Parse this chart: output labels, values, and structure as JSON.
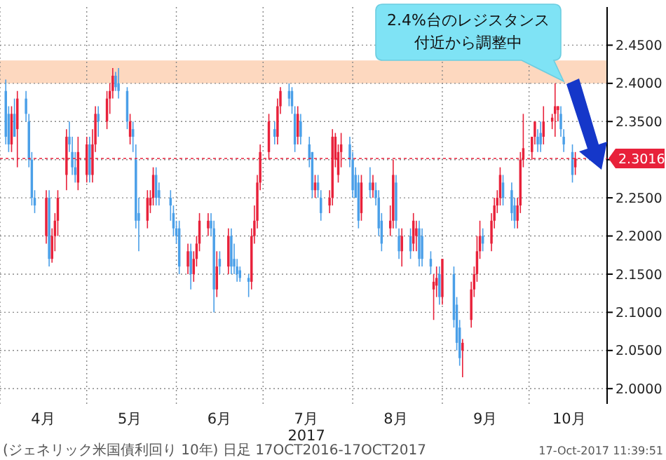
{
  "chart_data": {
    "type": "candlestick",
    "xlabel": "2017",
    "annotations": [
      "2.4%台のレジスタンス付近から調整中",
      "(ジェネリック米国債利回り 10年) 日足 17OCT2016-17OCT2017",
      "17-Oct-2017 11:39:51"
    ],
    "colors": [
      "#4a9fe8",
      "#4a9fe8",
      "#e8213a",
      "#4a9fe8",
      "#e8213a",
      "#4a9fe8",
      "#4a9fe8",
      "#4a9fe8",
      "#4a9fe8",
      "#e8213a",
      "#4a9fe8",
      "#e8213a",
      "#e8213a",
      "#e8213a",
      "#e8213a",
      "#4a9fe8",
      "#4a9fe8",
      "#4a9fe8",
      "#e8213a",
      "#e8213a",
      "#4a9fe8",
      "#e8213a",
      "#e8213a",
      "#4a9fe8",
      "#e8213a",
      "#e8213a",
      "#e8213a",
      "#4a9fe8",
      "#4a9fe8",
      "#4a9fe8",
      "#e8213a",
      "#4a9fe8",
      "#4a9fe8",
      "#4a9fe8",
      "#e8213a",
      "#e8213a",
      "#e8213a",
      "#4a9fe8",
      "#4a9fe8",
      "#4a9fe8",
      "#4a9fe8",
      "#4a9fe8",
      "#4a9fe8",
      "#e8213a",
      "#4a9fe8",
      "#e8213a",
      "#e8213a",
      "#e8213a",
      "#e8213a",
      "#4a9fe8",
      "#4a9fe8",
      "#e8213a",
      "#4a9fe8",
      "#e8213a",
      "#4a9fe8",
      "#4a9fe8",
      "#4a9fe8",
      "#4a9fe8",
      "#4a9fe8",
      "#e8213a",
      "#e8213a",
      "#e8213a",
      "#e8213a",
      "#e8213a",
      "#4a9fe8",
      "#e8213a",
      "#e8213a",
      "#4a9fe8",
      "#4a9fe8",
      "#4a9fe8",
      "#e8213a",
      "#4a9fe8",
      "#4a9fe8",
      "#4a9fe8",
      "#e8213a",
      "#4a9fe8",
      "#4a9fe8",
      "#e8213a",
      "#e8213a",
      "#e8213a",
      "#e8213a",
      "#e8213a",
      "#4a9fe8",
      "#4a9fe8",
      "#4a9fe8",
      "#4a9fe8",
      "#e8213a",
      "#4a9fe8",
      "#e8213a",
      "#4a9fe8",
      "#4a9fe8",
      "#4a9fe8",
      "#e8213a",
      "#e8213a",
      "#4a9fe8",
      "#4a9fe8",
      "#e8213a",
      "#4a9fe8",
      "#e8213a",
      "#e8213a",
      "#4a9fe8",
      "#4a9fe8",
      "#4a9fe8",
      "#e8213a",
      "#e8213a",
      "#4a9fe8",
      "#e8213a",
      "#4a9fe8",
      "#4a9fe8",
      "#4a9fe8",
      "#e8213a",
      "#e8213a",
      "#e8213a",
      "#e8213a",
      "#e8213a",
      "#4a9fe8",
      "#e8213a",
      "#e8213a",
      "#e8213a",
      "#e8213a",
      "#4a9fe8",
      "#4a9fe8",
      "#4a9fe8",
      "#e8213a",
      "#e8213a",
      "#e8213a",
      "#e8213a",
      "#e8213a",
      "#4a9fe8",
      "#4a9fe8",
      "#e8213a",
      "#e8213a",
      "#e8213a",
      "#e8213a",
      "#4a9fe8",
      "#4a9fe8",
      "#4a9fe8",
      "#e8213a"
    ],
    "x": [
      "2017-04-03",
      "2017-04-04",
      "2017-04-05",
      "2017-04-06",
      "2017-04-07",
      "2017-04-10",
      "2017-04-11",
      "2017-04-12",
      "2017-04-13",
      "2017-04-17",
      "2017-04-18",
      "2017-04-19",
      "2017-04-20",
      "2017-04-21",
      "2017-04-24",
      "2017-04-25",
      "2017-04-26",
      "2017-04-27",
      "2017-04-28",
      "2017-05-01",
      "2017-05-02",
      "2017-05-03",
      "2017-05-04",
      "2017-05-05",
      "2017-05-08",
      "2017-05-09",
      "2017-05-10",
      "2017-05-11",
      "2017-05-12",
      "2017-05-15",
      "2017-05-16",
      "2017-05-17",
      "2017-05-18",
      "2017-05-19",
      "2017-05-22",
      "2017-05-23",
      "2017-05-24",
      "2017-05-25",
      "2017-05-26",
      "2017-05-30",
      "2017-05-31",
      "2017-06-01",
      "2017-06-02",
      "2017-06-05",
      "2017-06-06",
      "2017-06-07",
      "2017-06-08",
      "2017-06-09",
      "2017-06-12",
      "2017-06-13",
      "2017-06-14",
      "2017-06-15",
      "2017-06-16",
      "2017-06-19",
      "2017-06-20",
      "2017-06-21",
      "2017-06-22",
      "2017-06-23",
      "2017-06-26",
      "2017-06-27",
      "2017-06-28",
      "2017-06-29",
      "2017-06-30",
      "2017-07-03",
      "2017-07-05",
      "2017-07-06",
      "2017-07-07",
      "2017-07-10",
      "2017-07-11",
      "2017-07-12",
      "2017-07-13",
      "2017-07-14",
      "2017-07-17",
      "2017-07-18",
      "2017-07-19",
      "2017-07-20",
      "2017-07-21",
      "2017-07-24",
      "2017-07-25",
      "2017-07-26",
      "2017-07-27",
      "2017-07-28",
      "2017-07-31",
      "2017-08-01",
      "2017-08-02",
      "2017-08-03",
      "2017-08-04",
      "2017-08-07",
      "2017-08-08",
      "2017-08-09",
      "2017-08-10",
      "2017-08-11",
      "2017-08-14",
      "2017-08-15",
      "2017-08-16",
      "2017-08-17",
      "2017-08-18",
      "2017-08-21",
      "2017-08-22",
      "2017-08-23",
      "2017-08-24",
      "2017-08-25",
      "2017-08-28",
      "2017-08-29",
      "2017-08-30",
      "2017-08-31",
      "2017-09-01",
      "2017-09-05",
      "2017-09-06",
      "2017-09-07",
      "2017-09-08",
      "2017-09-11",
      "2017-09-12",
      "2017-09-13",
      "2017-09-14",
      "2017-09-15",
      "2017-09-18",
      "2017-09-19",
      "2017-09-20",
      "2017-09-21",
      "2017-09-22",
      "2017-09-25",
      "2017-09-26",
      "2017-09-27",
      "2017-09-28",
      "2017-09-29",
      "2017-10-02",
      "2017-10-03",
      "2017-10-04",
      "2017-10-05",
      "2017-10-06",
      "2017-10-09",
      "2017-10-10",
      "2017-10-11",
      "2017-10-12",
      "2017-10-13",
      "2017-10-16",
      "2017-10-17"
    ],
    "ohlc": [
      [
        2.39,
        2.405,
        2.32,
        2.33
      ],
      [
        2.36,
        2.37,
        2.31,
        2.32
      ],
      [
        2.32,
        2.37,
        2.31,
        2.36
      ],
      [
        2.36,
        2.38,
        2.33,
        2.33
      ],
      [
        2.34,
        2.39,
        2.29,
        2.38
      ],
      [
        2.38,
        2.39,
        2.35,
        2.36
      ],
      [
        2.35,
        2.36,
        2.29,
        2.3
      ],
      [
        2.3,
        2.31,
        2.24,
        2.25
      ],
      [
        2.25,
        2.26,
        2.23,
        2.24
      ],
      [
        2.2,
        2.26,
        2.19,
        2.25
      ],
      [
        2.25,
        2.26,
        2.16,
        2.17
      ],
      [
        2.17,
        2.21,
        2.165,
        2.2
      ],
      [
        2.2,
        2.23,
        2.18,
        2.22
      ],
      [
        2.22,
        2.26,
        2.2,
        2.25
      ],
      [
        2.28,
        2.34,
        2.26,
        2.33
      ],
      [
        2.33,
        2.35,
        2.31,
        2.32
      ],
      [
        2.31,
        2.33,
        2.28,
        2.29
      ],
      [
        2.29,
        2.31,
        2.27,
        2.28
      ],
      [
        2.27,
        2.33,
        2.26,
        2.31
      ],
      [
        2.28,
        2.33,
        2.27,
        2.32
      ],
      [
        2.32,
        2.33,
        2.27,
        2.28
      ],
      [
        2.28,
        2.34,
        2.27,
        2.32
      ],
      [
        2.32,
        2.37,
        2.31,
        2.36
      ],
      [
        2.36,
        2.37,
        2.33,
        2.35
      ],
      [
        2.35,
        2.39,
        2.34,
        2.38
      ],
      [
        2.38,
        2.4,
        2.36,
        2.39
      ],
      [
        2.39,
        2.42,
        2.38,
        2.41
      ],
      [
        2.41,
        2.415,
        2.39,
        2.395
      ],
      [
        2.4,
        2.42,
        2.38,
        2.39
      ],
      [
        2.39,
        2.395,
        2.34,
        2.35
      ],
      [
        2.33,
        2.36,
        2.32,
        2.35
      ],
      [
        2.34,
        2.35,
        2.31,
        2.33
      ],
      [
        2.3,
        2.32,
        2.21,
        2.22
      ],
      [
        2.23,
        2.25,
        2.18,
        2.22
      ],
      [
        2.22,
        2.26,
        2.21,
        2.25
      ],
      [
        2.24,
        2.26,
        2.23,
        2.25
      ],
      [
        2.25,
        2.29,
        2.24,
        2.28
      ],
      [
        2.28,
        2.29,
        2.24,
        2.25
      ],
      [
        2.26,
        2.27,
        2.24,
        2.25
      ],
      [
        2.25,
        2.26,
        2.22,
        2.24
      ],
      [
        2.23,
        2.24,
        2.2,
        2.21
      ],
      [
        2.21,
        2.22,
        2.19,
        2.2
      ],
      [
        2.21,
        2.22,
        2.15,
        2.16
      ],
      [
        2.16,
        2.19,
        2.15,
        2.18
      ],
      [
        2.18,
        2.19,
        2.13,
        2.15
      ],
      [
        2.15,
        2.18,
        2.14,
        2.17
      ],
      [
        2.17,
        2.2,
        2.16,
        2.19
      ],
      [
        2.19,
        2.23,
        2.18,
        2.22
      ],
      [
        2.21,
        2.23,
        2.2,
        2.22
      ],
      [
        2.22,
        2.23,
        2.2,
        2.21
      ],
      [
        2.21,
        2.22,
        2.1,
        2.13
      ],
      [
        2.13,
        2.18,
        2.12,
        2.16
      ],
      [
        2.17,
        2.18,
        2.15,
        2.16
      ],
      [
        2.16,
        2.21,
        2.15,
        2.2
      ],
      [
        2.2,
        2.21,
        2.15,
        2.16
      ],
      [
        2.17,
        2.19,
        2.15,
        2.16
      ],
      [
        2.16,
        2.17,
        2.14,
        2.15
      ],
      [
        2.155,
        2.16,
        2.14,
        2.145
      ],
      [
        2.145,
        2.15,
        2.12,
        2.14
      ],
      [
        2.14,
        2.21,
        2.13,
        2.2
      ],
      [
        2.2,
        2.24,
        2.19,
        2.22
      ],
      [
        2.22,
        2.28,
        2.21,
        2.27
      ],
      [
        2.27,
        2.32,
        2.26,
        2.31
      ],
      [
        2.31,
        2.36,
        2.3,
        2.35
      ],
      [
        2.34,
        2.35,
        2.32,
        2.33
      ],
      [
        2.33,
        2.38,
        2.32,
        2.37
      ],
      [
        2.37,
        2.395,
        2.36,
        2.39
      ],
      [
        2.39,
        2.4,
        2.37,
        2.38
      ],
      [
        2.39,
        2.395,
        2.36,
        2.37
      ],
      [
        2.36,
        2.37,
        2.31,
        2.32
      ],
      [
        2.33,
        2.37,
        2.32,
        2.36
      ],
      [
        2.35,
        2.36,
        2.32,
        2.33
      ],
      [
        2.32,
        2.33,
        2.29,
        2.3
      ],
      [
        2.31,
        2.31,
        2.25,
        2.26
      ],
      [
        2.26,
        2.28,
        2.25,
        2.27
      ],
      [
        2.27,
        2.28,
        2.25,
        2.26
      ],
      [
        2.25,
        2.26,
        2.22,
        2.23
      ],
      [
        2.24,
        2.26,
        2.23,
        2.25
      ],
      [
        2.25,
        2.34,
        2.24,
        2.33
      ],
      [
        2.3,
        2.335,
        2.29,
        2.33
      ],
      [
        2.28,
        2.32,
        2.27,
        2.31
      ],
      [
        2.31,
        2.335,
        2.29,
        2.32
      ],
      [
        2.32,
        2.33,
        2.29,
        2.3
      ],
      [
        2.3,
        2.31,
        2.25,
        2.26
      ],
      [
        2.28,
        2.29,
        2.25,
        2.25
      ],
      [
        2.27,
        2.28,
        2.21,
        2.22
      ],
      [
        2.23,
        2.28,
        2.22,
        2.27
      ],
      [
        2.27,
        2.29,
        2.25,
        2.26
      ],
      [
        2.26,
        2.28,
        2.25,
        2.27
      ],
      [
        2.26,
        2.27,
        2.24,
        2.25
      ],
      [
        2.25,
        2.26,
        2.2,
        2.21
      ],
      [
        2.22,
        2.23,
        2.18,
        2.19
      ],
      [
        2.21,
        2.24,
        2.2,
        2.22
      ],
      [
        2.22,
        2.3,
        2.21,
        2.28
      ],
      [
        2.27,
        2.28,
        2.21,
        2.22
      ],
      [
        2.2,
        2.21,
        2.17,
        2.18
      ],
      [
        2.18,
        2.21,
        2.16,
        2.2
      ],
      [
        2.2,
        2.21,
        2.17,
        2.18
      ],
      [
        2.19,
        2.23,
        2.18,
        2.22
      ],
      [
        2.2,
        2.22,
        2.18,
        2.21
      ],
      [
        2.21,
        2.22,
        2.16,
        2.17
      ],
      [
        2.2,
        2.21,
        2.16,
        2.17
      ],
      [
        2.17,
        2.18,
        2.15,
        2.16
      ],
      [
        2.13,
        2.15,
        2.09,
        2.14
      ],
      [
        2.135,
        2.16,
        2.12,
        2.145
      ],
      [
        2.15,
        2.16,
        2.11,
        2.12
      ],
      [
        2.12,
        2.17,
        2.11,
        2.17
      ],
      [
        2.15,
        2.16,
        2.08,
        2.09
      ],
      [
        2.11,
        2.12,
        2.05,
        2.06
      ],
      [
        2.08,
        2.09,
        2.03,
        2.04
      ],
      [
        2.05,
        2.065,
        2.015,
        2.06
      ],
      [
        2.09,
        2.14,
        2.08,
        2.13
      ],
      [
        2.13,
        2.16,
        2.12,
        2.15
      ],
      [
        2.15,
        2.2,
        2.14,
        2.18
      ],
      [
        2.18,
        2.22,
        2.17,
        2.2
      ],
      [
        2.2,
        2.21,
        2.18,
        2.19
      ],
      [
        2.19,
        2.23,
        2.18,
        2.22
      ],
      [
        2.22,
        2.25,
        2.21,
        2.24
      ],
      [
        2.24,
        2.26,
        2.23,
        2.25
      ],
      [
        2.25,
        2.29,
        2.24,
        2.28
      ],
      [
        2.27,
        2.28,
        2.24,
        2.25
      ],
      [
        2.26,
        2.27,
        2.22,
        2.23
      ],
      [
        2.24,
        2.25,
        2.21,
        2.22
      ],
      [
        2.22,
        2.25,
        2.21,
        2.24
      ],
      [
        2.24,
        2.31,
        2.23,
        2.3
      ],
      [
        2.3,
        2.36,
        2.29,
        2.315
      ],
      [
        2.31,
        2.33,
        2.3,
        2.33
      ],
      [
        2.33,
        2.35,
        2.32,
        2.35
      ],
      [
        2.33,
        2.34,
        2.31,
        2.32
      ],
      [
        2.335,
        2.35,
        2.31,
        2.32
      ],
      [
        2.33,
        2.37,
        2.32,
        2.35
      ],
      [
        2.35,
        2.36,
        2.34,
        2.355
      ],
      [
        2.36,
        2.4,
        2.33,
        2.37
      ],
      [
        2.365,
        2.37,
        2.35,
        2.37
      ],
      [
        2.36,
        2.37,
        2.33,
        2.34
      ],
      [
        2.33,
        2.34,
        2.31,
        2.32
      ],
      [
        2.31,
        2.32,
        2.27,
        2.28
      ],
      [
        2.29,
        2.31,
        2.28,
        2.3016
      ]
    ],
    "xlim": [
      "2017-04-01",
      "2017-10-28"
    ],
    "xticks": [
      {
        "value": "2017-04-01",
        "label": null
      },
      {
        "value": "2017-05-01",
        "label": null
      },
      {
        "value": "2017-06-01",
        "label": null
      },
      {
        "value": "2017-07-01",
        "label": null
      },
      {
        "value": "2017-08-01",
        "label": null
      },
      {
        "value": "2017-09-01",
        "label": null
      },
      {
        "value": "2017-10-01",
        "label": null
      },
      {
        "value": "2017-04-16",
        "label": "4月"
      },
      {
        "value": "2017-05-16",
        "label": "5月"
      },
      {
        "value": "2017-06-16",
        "label": "6月"
      },
      {
        "value": "2017-07-16",
        "label": "7月"
      },
      {
        "value": "2017-08-16",
        "label": "8月"
      },
      {
        "value": "2017-09-16",
        "label": "9月"
      },
      {
        "value": "2017-10-15",
        "label": "10月"
      }
    ],
    "ylim": [
      1.98,
      2.5
    ],
    "yticks": [
      {
        "value": 2,
        "label": "2.0000"
      },
      {
        "value": 2.05,
        "label": "2.0500"
      },
      {
        "value": 2.1,
        "label": "2.1000"
      },
      {
        "value": 2.15,
        "label": "2.1500"
      },
      {
        "value": 2.2,
        "label": "2.2000"
      },
      {
        "value": 2.25,
        "label": "2.2500"
      },
      {
        "value": 2.3,
        "label": null
      },
      {
        "value": 2.35,
        "label": "2.3500"
      },
      {
        "value": 2.4,
        "label": "2.4000"
      },
      {
        "value": 2.45,
        "label": "2.4500"
      }
    ],
    "bands": [
      {
        "axis": "y",
        "from": 2.4,
        "to": 2.43,
        "color": "#fdd8bf"
      }
    ],
    "ref_lines": [
      {
        "axis": "y",
        "value": 2.3016,
        "label": "2.3016",
        "color": "#e8213a"
      }
    ],
    "grid": true
  }
}
